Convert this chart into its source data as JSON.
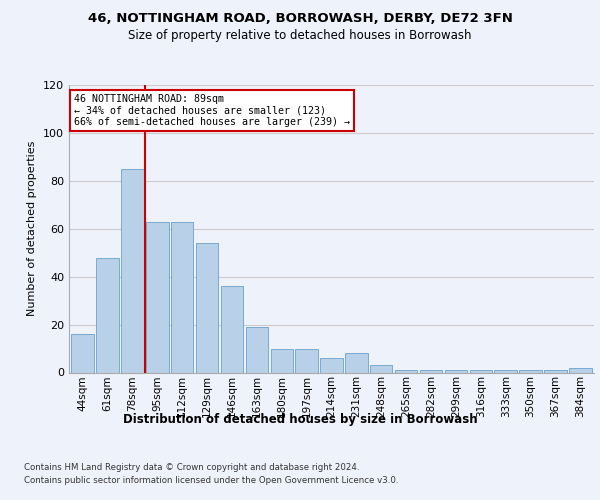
{
  "title1": "46, NOTTINGHAM ROAD, BORROWASH, DERBY, DE72 3FN",
  "title2": "Size of property relative to detached houses in Borrowash",
  "xlabel": "Distribution of detached houses by size in Borrowash",
  "ylabel": "Number of detached properties",
  "bin_labels": [
    "44sqm",
    "61sqm",
    "78sqm",
    "95sqm",
    "112sqm",
    "129sqm",
    "146sqm",
    "163sqm",
    "180sqm",
    "197sqm",
    "214sqm",
    "231sqm",
    "248sqm",
    "265sqm",
    "282sqm",
    "299sqm",
    "316sqm",
    "333sqm",
    "350sqm",
    "367sqm",
    "384sqm"
  ],
  "bar_values": [
    16,
    48,
    85,
    63,
    63,
    54,
    36,
    19,
    10,
    10,
    6,
    8,
    3,
    1,
    1,
    1,
    1,
    1,
    1,
    1,
    2
  ],
  "bar_color": "#b8d0e8",
  "bar_edge_color": "#6aa0cc",
  "annotation_text": "46 NOTTINGHAM ROAD: 89sqm\n← 34% of detached houses are smaller (123)\n66% of semi-detached houses are larger (239) →",
  "annotation_box_color": "#ffffff",
  "annotation_box_edge": "#cc0000",
  "vline_color": "#cc0000",
  "ylim": [
    0,
    120
  ],
  "yticks": [
    0,
    20,
    40,
    60,
    80,
    100,
    120
  ],
  "grid_color": "#cccccc",
  "bg_color": "#eef2fb",
  "footnote1": "Contains HM Land Registry data © Crown copyright and database right 2024.",
  "footnote2": "Contains public sector information licensed under the Open Government Licence v3.0."
}
